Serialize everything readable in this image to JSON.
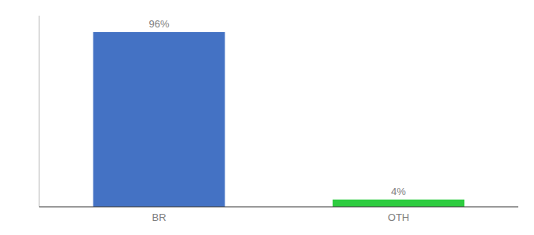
{
  "chart_data": {
    "type": "bar",
    "categories": [
      "BR",
      "OTH"
    ],
    "values": [
      96,
      4
    ],
    "value_labels": [
      "96%",
      "4%"
    ],
    "colors": [
      "#4472c4",
      "#2ecc40"
    ],
    "ylim": [
      0,
      105
    ],
    "data_labels": true,
    "tick_labels": "x",
    "grid": false
  }
}
